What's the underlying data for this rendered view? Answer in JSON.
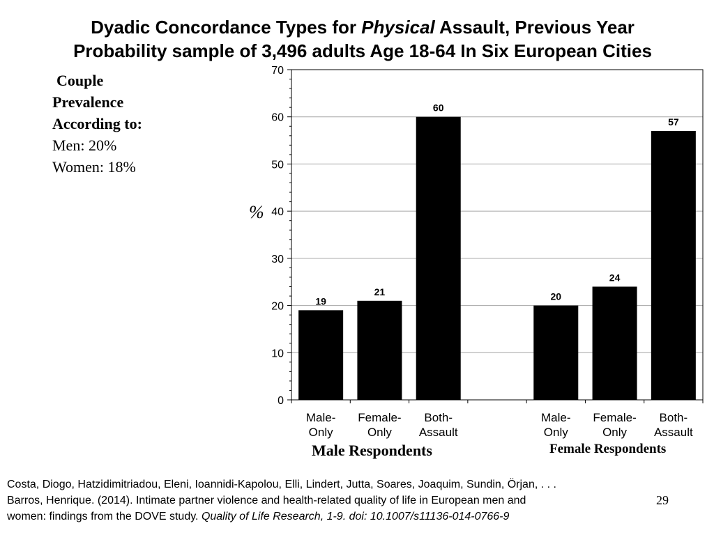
{
  "title": {
    "line1_pre": "Dyadic Concordance Types for ",
    "line1_italic": "Physical",
    "line1_post": " Assault, Previous Year",
    "line2": "Probability sample of 3,496 adults Age 18-64 In Six European Cities"
  },
  "prevalence": {
    "line1": "Couple",
    "line2": "Prevalence",
    "line3": "According to:",
    "men": "Men: 20%",
    "women": "Women: 18%"
  },
  "chart_data": {
    "type": "bar",
    "ylabel": "%",
    "ylim": [
      0,
      70
    ],
    "yticks": [
      0,
      10,
      20,
      30,
      40,
      50,
      60,
      70
    ],
    "grid": true,
    "groups": [
      {
        "name": "Male Respondents",
        "categories": [
          [
            "Male-",
            "Only"
          ],
          [
            "Female-",
            "Only"
          ],
          [
            "Both-",
            "Assault"
          ]
        ],
        "values": [
          19,
          21,
          60
        ]
      },
      {
        "name": "Female Respondents",
        "categories": [
          [
            "Male-",
            "Only"
          ],
          [
            "Female-",
            "Only"
          ],
          [
            "Both-",
            "Assault"
          ]
        ],
        "values": [
          20,
          24,
          57
        ]
      }
    ],
    "bar_color": "#000000"
  },
  "citation": {
    "line1": "Costa, Diogo, Hatzidimitriadou, Eleni, Ioannidi-Kapolou, Elli, Lindert, Jutta, Soares, Joaquim, Sundin, Örjan, . . .",
    "line2": "Barros, Henrique. (2014). Intimate partner violence and health-related quality of life in European men and",
    "line3_plain": "women: findings from the DOVE study. ",
    "line3_italic": "Quality of Life Research, 1-9. doi: 10.1007/s11136-014-0766-9"
  },
  "page_number": "29"
}
